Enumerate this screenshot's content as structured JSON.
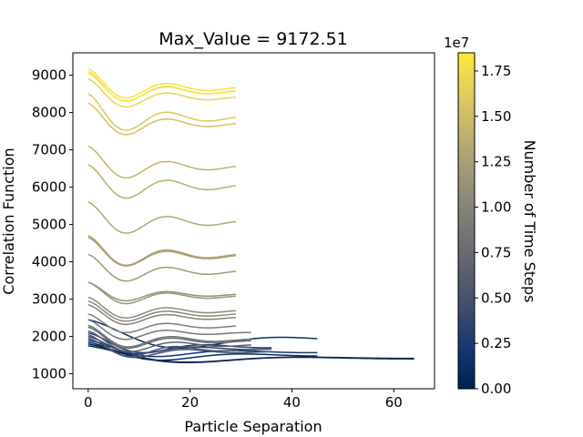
{
  "chart_data": {
    "type": "line",
    "title": "Max_Value = 9172.51",
    "xlabel": "Particle Separation",
    "ylabel": "Correlation Function",
    "xlim": [
      -3,
      68
    ],
    "ylim": [
      600,
      9600
    ],
    "xticks": [
      0,
      20,
      40,
      60
    ],
    "yticks": [
      1000,
      2000,
      3000,
      4000,
      5000,
      6000,
      7000,
      8000,
      9000
    ],
    "colorbar": {
      "label": "Number of Time Steps",
      "range": [
        0,
        18500000
      ],
      "ticks": [
        0,
        2500000,
        5000000,
        7500000,
        10000000,
        12500000,
        15000000,
        17500000
      ],
      "tick_labels": [
        "0.00",
        "0.25",
        "0.50",
        "0.75",
        "1.00",
        "1.25",
        "1.50",
        "1.75"
      ],
      "offset_label": "1e7",
      "colormap": "cividis",
      "colors": [
        "#00224e",
        "#123570",
        "#3b496c",
        "#575d6d",
        "#707173",
        "#8a8779",
        "#a69d75",
        "#c4b56c",
        "#e4cf5b",
        "#fee838"
      ]
    },
    "series": [
      {
        "t": 300000,
        "x_end": 64,
        "y0": 1800,
        "period": 45,
        "amp": 380,
        "decay": 0.06
      },
      {
        "t": 600000,
        "x_end": 64,
        "y0": 1750,
        "period": 44,
        "amp": 340,
        "decay": 0.055
      },
      {
        "t": 1000000,
        "x_end": 45,
        "y0": 1850,
        "period": 32,
        "amp": 360,
        "decay": 0.07
      },
      {
        "t": 1400000,
        "x_end": 45,
        "y0": 2450,
        "period": 40,
        "amp": 550,
        "decay": 0.05
      },
      {
        "t": 2000000,
        "x_end": 45,
        "y0": 1900,
        "period": 30,
        "amp": 320,
        "decay": 0.07
      },
      {
        "t": 2800000,
        "x_end": 36,
        "y0": 2100,
        "period": 24,
        "amp": 380,
        "decay": 0.08
      },
      {
        "t": 3500000,
        "x_end": 36,
        "y0": 2000,
        "period": 22,
        "amp": 330,
        "decay": 0.09
      },
      {
        "t": 4500000,
        "x_end": 36,
        "y0": 1950,
        "period": 20,
        "amp": 360,
        "decay": 0.09
      },
      {
        "t": 5500000,
        "x_end": 36,
        "y0": 2050,
        "period": 18,
        "amp": 400,
        "decay": 0.09
      },
      {
        "t": 6500000,
        "x_end": 32,
        "y0": 2150,
        "period": 18,
        "amp": 380,
        "decay": 0.09
      },
      {
        "t": 7500000,
        "x_end": 32,
        "y0": 2250,
        "period": 17,
        "amp": 380,
        "decay": 0.09
      },
      {
        "t": 8200000,
        "x_end": 32,
        "y0": 2300,
        "period": 17,
        "amp": 390,
        "decay": 0.09
      },
      {
        "t": 8800000,
        "x_end": 32,
        "y0": 2450,
        "period": 16,
        "amp": 360,
        "decay": 0.1
      },
      {
        "t": 9300000,
        "x_end": 29,
        "y0": 2600,
        "period": 16,
        "amp": 330,
        "decay": 0.09
      },
      {
        "t": 9800000,
        "x_end": 29,
        "y0": 2850,
        "period": 16,
        "amp": 350,
        "decay": 0.09
      },
      {
        "t": 10200000,
        "x_end": 29,
        "y0": 2950,
        "period": 16,
        "amp": 360,
        "decay": 0.09
      },
      {
        "t": 10600000,
        "x_end": 29,
        "y0": 3050,
        "period": 16,
        "amp": 370,
        "decay": 0.09
      },
      {
        "t": 11000000,
        "x_end": 29,
        "y0": 3450,
        "period": 16,
        "amp": 330,
        "decay": 0.09
      },
      {
        "t": 11500000,
        "x_end": 29,
        "y0": 3450,
        "period": 16,
        "amp": 380,
        "decay": 0.09
      },
      {
        "t": 12000000,
        "x_end": 29,
        "y0": 4200,
        "period": 16,
        "amp": 470,
        "decay": 0.085
      },
      {
        "t": 12400000,
        "x_end": 29,
        "y0": 4650,
        "period": 16,
        "amp": 500,
        "decay": 0.085
      },
      {
        "t": 12800000,
        "x_end": 29,
        "y0": 4700,
        "period": 16,
        "amp": 520,
        "decay": 0.085
      },
      {
        "t": 13300000,
        "x_end": 29,
        "y0": 5600,
        "period": 16,
        "amp": 540,
        "decay": 0.08
      },
      {
        "t": 13800000,
        "x_end": 29,
        "y0": 6600,
        "period": 16,
        "amp": 580,
        "decay": 0.08
      },
      {
        "t": 14300000,
        "x_end": 29,
        "y0": 7100,
        "period": 16,
        "amp": 560,
        "decay": 0.085
      },
      {
        "t": 15300000,
        "x_end": 29,
        "y0": 8250,
        "period": 16,
        "amp": 560,
        "decay": 0.09
      },
      {
        "t": 15900000,
        "x_end": 29,
        "y0": 8500,
        "period": 16,
        "amp": 650,
        "decay": 0.09
      },
      {
        "t": 16700000,
        "x_end": 29,
        "y0": 8900,
        "period": 16,
        "amp": 500,
        "decay": 0.09
      },
      {
        "t": 17400000,
        "x_end": 29,
        "y0": 9100,
        "period": 16,
        "amp": 530,
        "decay": 0.09
      },
      {
        "t": 17900000,
        "x_end": 29,
        "y0": 9172.51,
        "period": 16,
        "amp": 520,
        "decay": 0.09
      },
      {
        "t": 18300000,
        "x_end": 29,
        "y0": 9050,
        "period": 16,
        "amp": 490,
        "decay": 0.09
      }
    ]
  }
}
